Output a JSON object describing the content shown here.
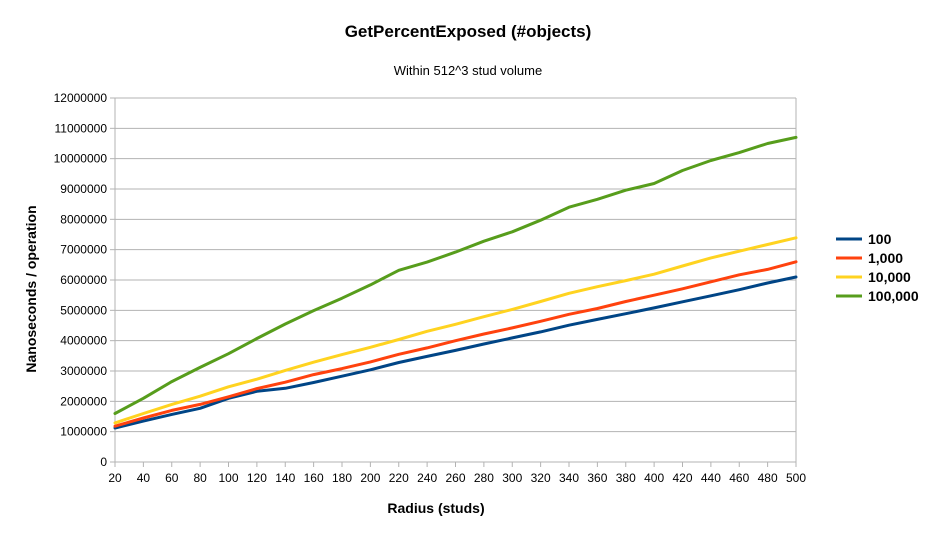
{
  "chart_data": {
    "type": "line",
    "title": "GetPercentExposed (#objects)",
    "subtitle": "Within 512^3 stud volume",
    "xlabel": "Radius (studs)",
    "ylabel": "Nanoseconds / operation",
    "ylim": [
      0,
      12000000
    ],
    "y_ticks": [
      "0",
      "1000000",
      "2000000",
      "3000000",
      "4000000",
      "5000000",
      "6000000",
      "7000000",
      "8000000",
      "9000000",
      "10000000",
      "11000000",
      "12000000"
    ],
    "x": [
      20,
      40,
      60,
      80,
      100,
      120,
      140,
      160,
      180,
      200,
      220,
      240,
      260,
      280,
      300,
      320,
      340,
      360,
      380,
      400,
      420,
      440,
      460,
      480,
      500
    ],
    "x_ticks": [
      "20",
      "40",
      "60",
      "80",
      "100",
      "120",
      "140",
      "160",
      "180",
      "200",
      "220",
      "240",
      "260",
      "280",
      "300",
      "320",
      "340",
      "360",
      "380",
      "400",
      "420",
      "440",
      "460",
      "480",
      "500"
    ],
    "grid": true,
    "legend_position": "right",
    "series": [
      {
        "name": "100",
        "color": "#004586",
        "values": [
          1120000,
          1350000,
          1570000,
          1770000,
          2100000,
          2330000,
          2430000,
          2620000,
          2830000,
          3040000,
          3280000,
          3480000,
          3680000,
          3890000,
          4090000,
          4290000,
          4510000,
          4700000,
          4890000,
          5080000,
          5280000,
          5480000,
          5680000,
          5900000,
          6100000
        ]
      },
      {
        "name": "1,000",
        "color": "#ff420e",
        "values": [
          1180000,
          1450000,
          1700000,
          1900000,
          2150000,
          2420000,
          2630000,
          2880000,
          3080000,
          3300000,
          3550000,
          3760000,
          4000000,
          4220000,
          4420000,
          4640000,
          4870000,
          5060000,
          5290000,
          5500000,
          5710000,
          5940000,
          6170000,
          6350000,
          6600000
        ]
      },
      {
        "name": "10,000",
        "color": "#ffd320",
        "values": [
          1290000,
          1600000,
          1900000,
          2170000,
          2480000,
          2730000,
          3020000,
          3290000,
          3540000,
          3780000,
          4040000,
          4310000,
          4540000,
          4790000,
          5030000,
          5290000,
          5560000,
          5780000,
          5980000,
          6190000,
          6460000,
          6730000,
          6950000,
          7170000,
          7390000
        ]
      },
      {
        "name": "100,000",
        "color": "#579d1c",
        "values": [
          1600000,
          2100000,
          2650000,
          3120000,
          3570000,
          4070000,
          4550000,
          4990000,
          5400000,
          5840000,
          6320000,
          6590000,
          6920000,
          7280000,
          7590000,
          7970000,
          8400000,
          8660000,
          8960000,
          9180000,
          9610000,
          9940000,
          10200000,
          10500000,
          10700000
        ]
      }
    ]
  }
}
